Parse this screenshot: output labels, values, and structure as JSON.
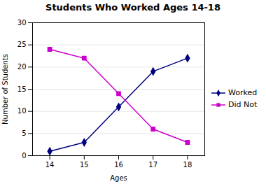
{
  "chart_data": {
    "type": "line",
    "title": "Students Who Worked Ages 14-18",
    "xlabel": "Ages",
    "ylabel": "Number of Students",
    "x": [
      14,
      15,
      16,
      17,
      18
    ],
    "series": [
      {
        "name": "Worked",
        "color": "#000080",
        "marker": "diamond",
        "values": [
          1,
          3,
          11,
          19,
          22
        ]
      },
      {
        "name": "Did Not",
        "color": "#CC00CC",
        "marker": "square",
        "values": [
          24,
          22,
          14,
          6,
          3
        ]
      }
    ],
    "xlim": [
      13.5,
      18.5
    ],
    "xticks": [
      14,
      15,
      16,
      17,
      18
    ],
    "ylim": [
      0,
      30
    ],
    "yticks": [
      0,
      5,
      10,
      15,
      20,
      25,
      30
    ],
    "grid": "y",
    "legend": "right"
  }
}
